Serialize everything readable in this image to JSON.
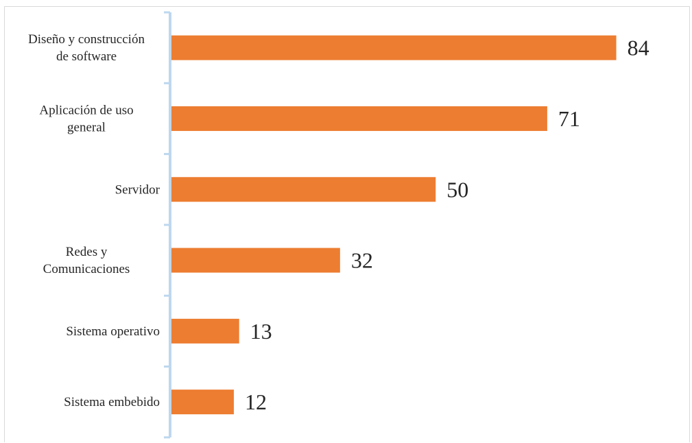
{
  "chart_data": {
    "type": "bar",
    "orientation": "horizontal",
    "categories": [
      [
        "Diseño y construcción",
        "de software"
      ],
      [
        "Aplicación de uso",
        "general"
      ],
      [
        "Servidor"
      ],
      [
        "Redes y",
        "Comunicaciones"
      ],
      [
        "Sistema operativo"
      ],
      [
        "Sistema embebido"
      ]
    ],
    "values": [
      84,
      71,
      50,
      32,
      13,
      12
    ],
    "value_labels": [
      "84",
      "71",
      "50",
      "32",
      "13",
      "12"
    ],
    "xlim": [
      0,
      90
    ],
    "grid": false,
    "legend": "none",
    "colors": {
      "bar": "#ED7D31",
      "axis": "#BDD7EE",
      "text": "#262626",
      "frame": "#D9D9D9"
    }
  }
}
